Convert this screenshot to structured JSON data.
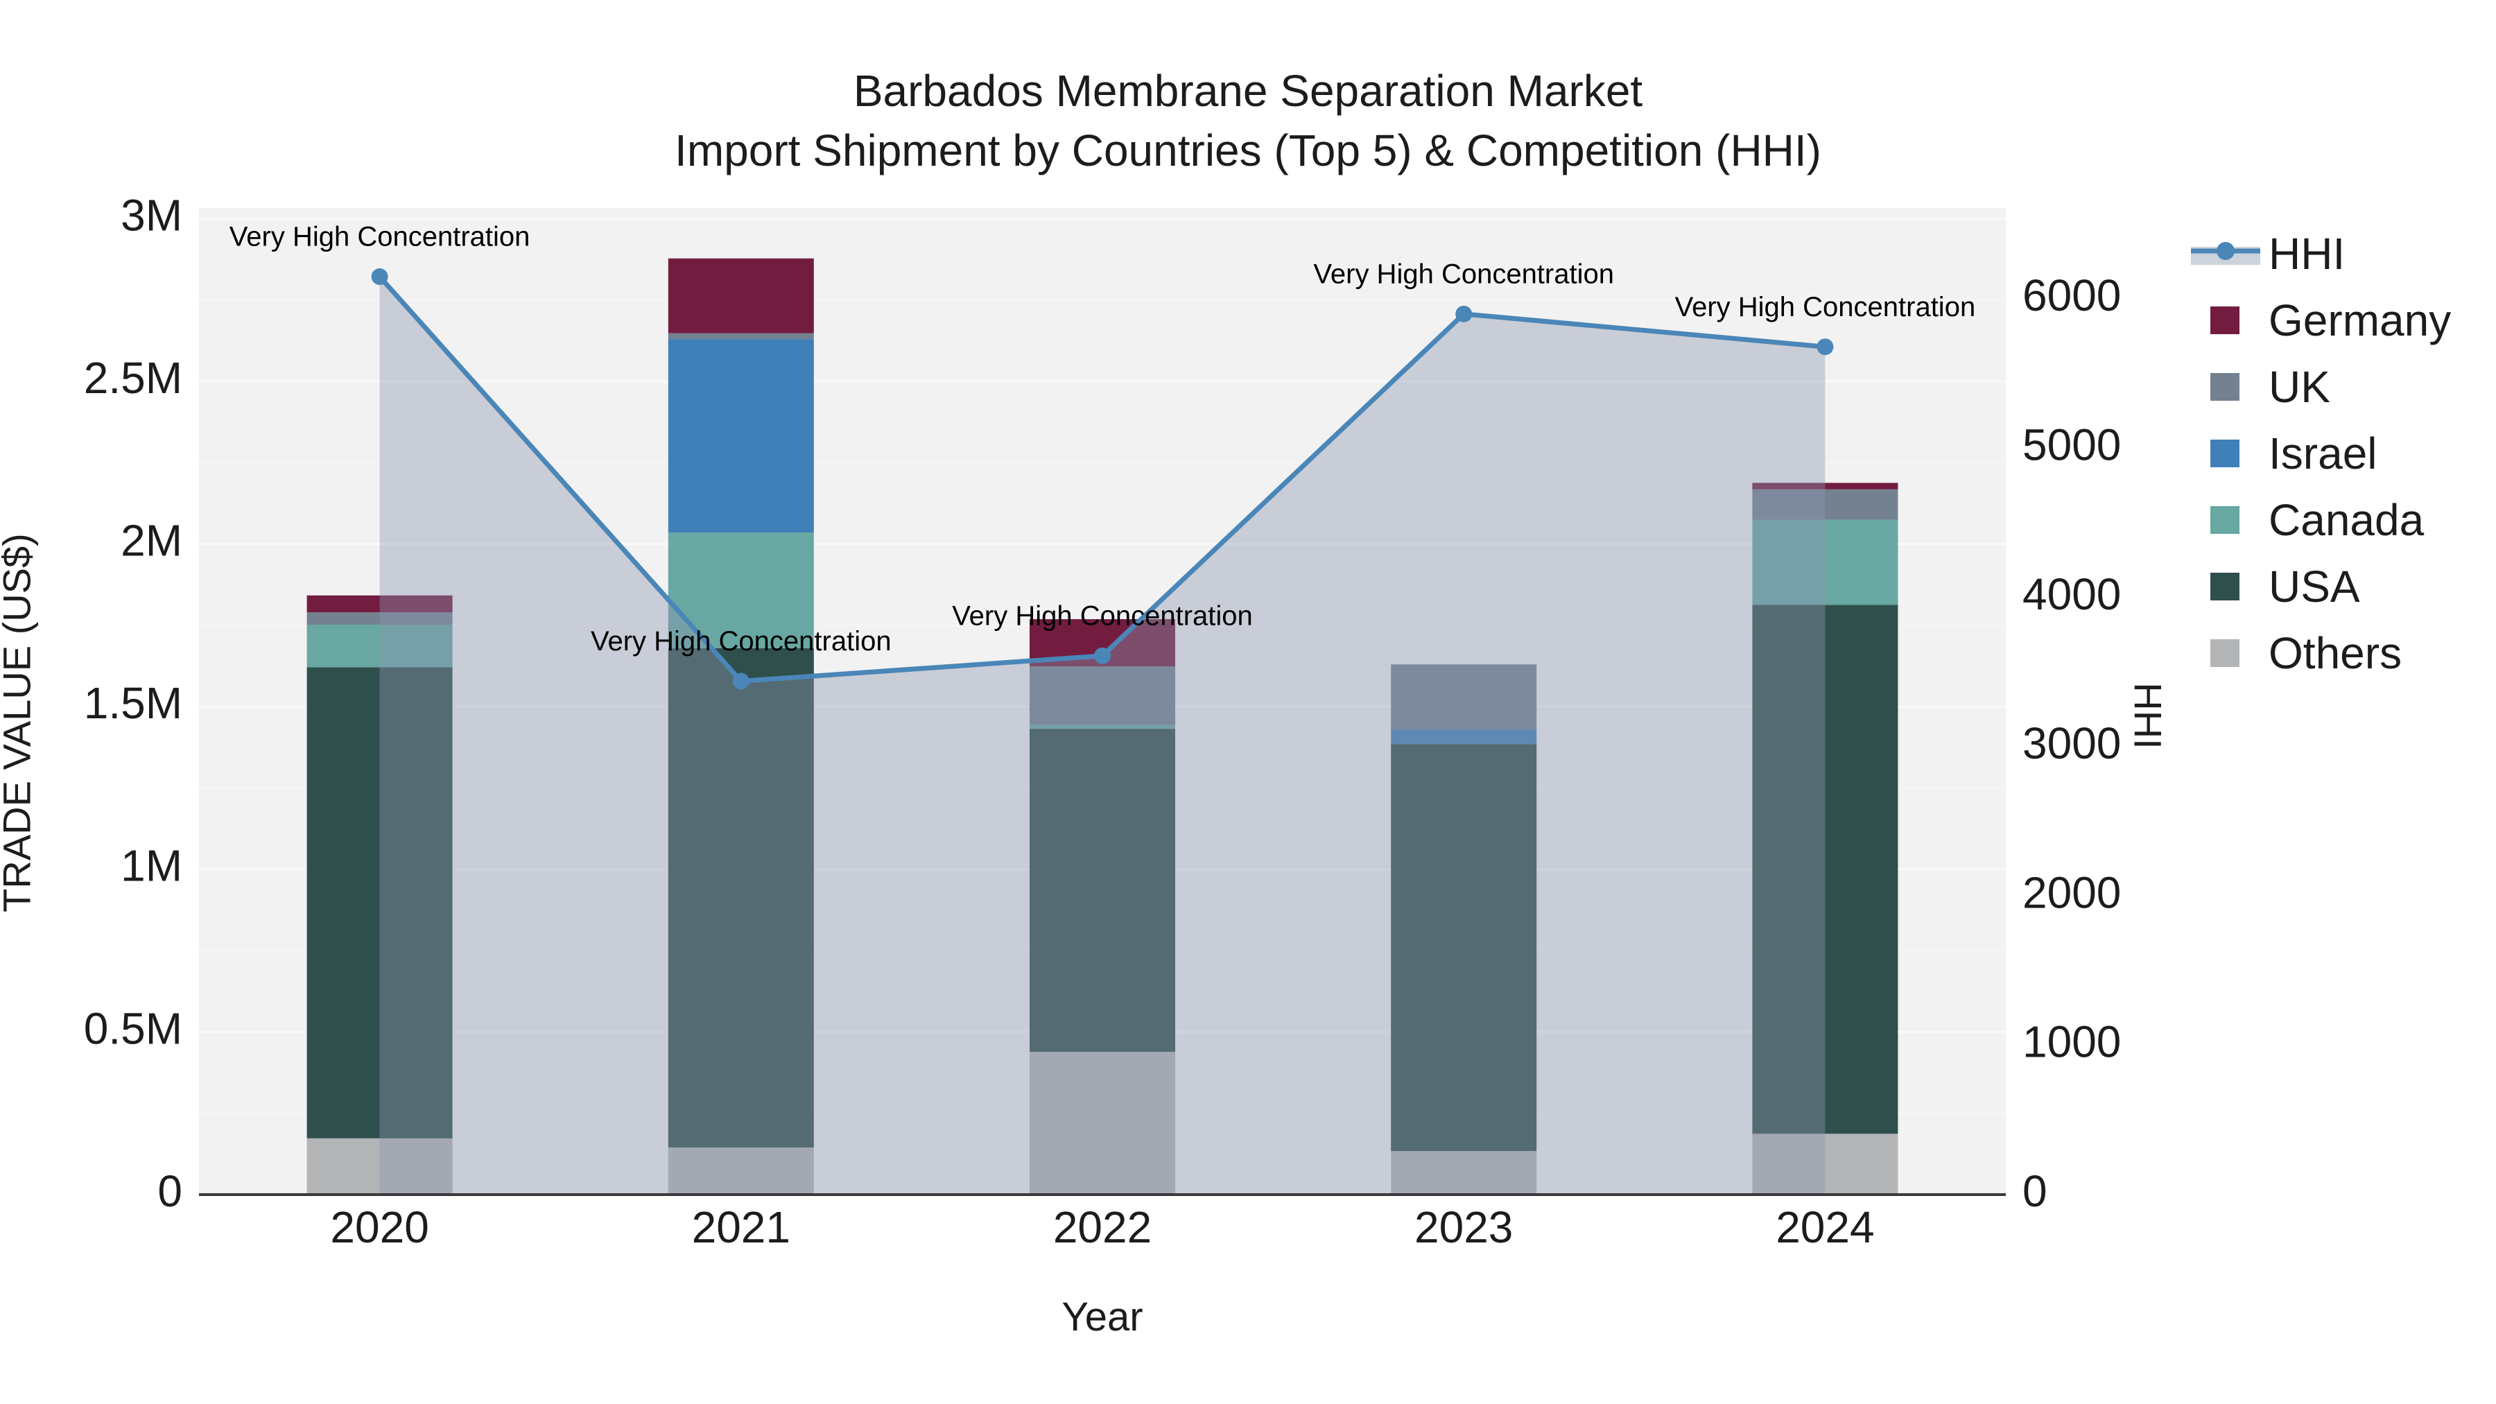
{
  "figure": {
    "title_line1": "Barbados Membrane Separation Market",
    "title_line2": "Import Shipment by Countries (Top 5) & Competition (HHI)"
  },
  "axes": {
    "left": {
      "title": "TRADE VALUE (US$)",
      "tick_labels": [
        "0",
        "0.5M",
        "1M",
        "1.5M",
        "2M",
        "2.5M",
        "3M"
      ],
      "tick_values_musd": [
        0,
        0.5,
        1,
        1.5,
        2,
        2.5,
        3
      ]
    },
    "right": {
      "title": "HHI",
      "tick_labels": [
        "0",
        "1000",
        "2000",
        "3000",
        "4000",
        "5000",
        "6000"
      ],
      "tick_values": [
        0,
        1000,
        2000,
        3000,
        4000,
        5000,
        6000
      ]
    },
    "x": {
      "title": "Year",
      "categories": [
        "2020",
        "2021",
        "2022",
        "2023",
        "2024"
      ]
    }
  },
  "legend": [
    {
      "id": "hhi",
      "label": "HHI",
      "type": "line"
    },
    {
      "id": "germany",
      "label": "Germany",
      "type": "swatch",
      "color": "#721d40"
    },
    {
      "id": "uk",
      "label": "UK",
      "type": "swatch",
      "color": "#74818f"
    },
    {
      "id": "israel",
      "label": "Israel",
      "type": "swatch",
      "color": "#4080b8"
    },
    {
      "id": "canada",
      "label": "Canada",
      "type": "swatch",
      "color": "#68a7a2"
    },
    {
      "id": "usa",
      "label": "USA",
      "type": "swatch",
      "color": "#2f4f4d"
    },
    {
      "id": "others",
      "label": "Others",
      "type": "swatch",
      "color": "#b2b4b6"
    }
  ],
  "colors": {
    "hhi_line": "#4a86b8",
    "hhi_area": "rgba(140,151,174,0.4)",
    "plot_bg": "#f2f2f2",
    "grid_major": "#fafafa",
    "grid_minor": "#f6f6f6",
    "axis_line": "#3a3a3a",
    "text": "#1c1c1c"
  },
  "chart_data": {
    "type": "combo-stacked-bar-line",
    "title": "Barbados Membrane Separation Market — Import Shipment by Countries (Top 5) & Competition (HHI)",
    "categories": [
      "2020",
      "2021",
      "2022",
      "2023",
      "2024"
    ],
    "bar_unit": "US$ (millions)",
    "stack_order_bottom_to_top": [
      "Others",
      "USA",
      "Canada",
      "Israel",
      "UK",
      "Germany"
    ],
    "series": [
      {
        "name": "Others",
        "color": "#b2b4b6",
        "values_musd": [
          0.173,
          0.145,
          0.439,
          0.134,
          0.187
        ]
      },
      {
        "name": "USA",
        "color": "#2f4f4d",
        "values_musd": [
          1.448,
          1.535,
          0.993,
          1.251,
          1.626
        ]
      },
      {
        "name": "Canada",
        "color": "#68a7a2",
        "values_musd": [
          0.131,
          0.355,
          0.013,
          0.0,
          0.262
        ]
      },
      {
        "name": "Israel",
        "color": "#4080b8",
        "values_musd": [
          0.0,
          0.595,
          0.0,
          0.045,
          0.0
        ]
      },
      {
        "name": "UK",
        "color": "#74818f",
        "values_musd": [
          0.038,
          0.018,
          0.179,
          0.2,
          0.093
        ]
      },
      {
        "name": "Germany",
        "color": "#721d40",
        "values_musd": [
          0.052,
          0.23,
          0.145,
          0.0,
          0.02
        ]
      }
    ],
    "bar_totals_musd": [
      1.842,
      2.878,
      1.769,
      1.63,
      2.188
    ],
    "line": {
      "name": "HHI",
      "axis": "right",
      "color": "#4a86b8",
      "values": [
        6150,
        3440,
        3610,
        5900,
        5680
      ]
    },
    "annotations": [
      {
        "category": "2020",
        "text": "Very High Concentration"
      },
      {
        "category": "2021",
        "text": "Very High Concentration"
      },
      {
        "category": "2022",
        "text": "Very High Concentration"
      },
      {
        "category": "2023",
        "text": "Very High Concentration"
      },
      {
        "category": "2024",
        "text": "Very High Concentration"
      }
    ],
    "y_left": {
      "label": "TRADE VALUE (US$)",
      "range_musd": [
        0,
        3.033
      ],
      "ticks_musd": [
        0,
        0.5,
        1,
        1.5,
        2,
        2.5,
        3
      ]
    },
    "y_right": {
      "label": "HHI",
      "range": [
        0,
        6610
      ],
      "ticks": [
        0,
        1000,
        2000,
        3000,
        4000,
        5000,
        6000
      ]
    },
    "grid": true,
    "legend_position": "right"
  }
}
